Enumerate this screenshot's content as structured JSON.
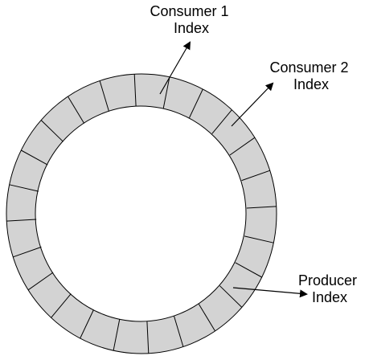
{
  "diagram": {
    "segment_count": 24,
    "colors": {
      "ring_fill": "#d3d3d3",
      "ring_stroke": "#000000",
      "background": "#ffffff",
      "arrow": "#000000"
    },
    "labels": {
      "consumer1": {
        "line1": "Consumer 1",
        "line2": "Index"
      },
      "consumer2": {
        "line1": "Consumer 2",
        "line2": "Index"
      },
      "producer": {
        "line1": "Producer",
        "line2": "Index"
      }
    }
  }
}
